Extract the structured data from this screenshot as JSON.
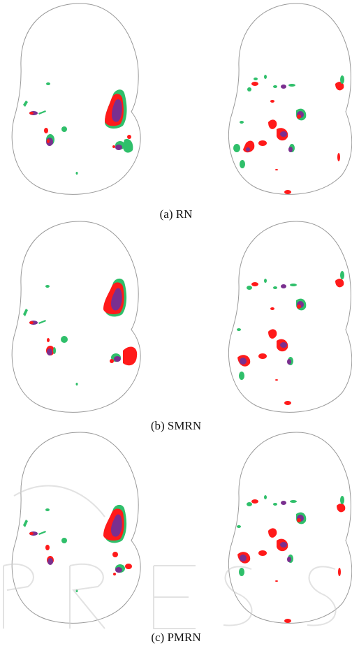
{
  "figure": {
    "colors": {
      "outline": "#9a9a9a",
      "green": "#2fbf6a",
      "red": "#ff1a1a",
      "purple": "#7a2f8f"
    },
    "panels": [
      {
        "caption": "(a) RN"
      },
      {
        "caption": "(b) SMRN"
      },
      {
        "caption": "(c) PMRN"
      }
    ]
  }
}
